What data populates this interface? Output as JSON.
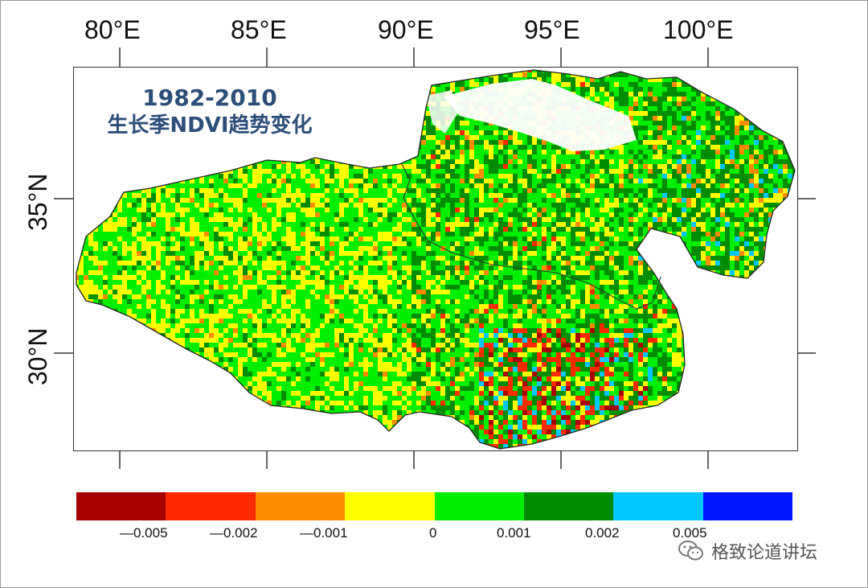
{
  "title": {
    "line1": "1982-2010",
    "line2": "生长季NDVI趋势变化"
  },
  "axes": {
    "lon_ticks": [
      "80°E",
      "85°E",
      "90°E",
      "95°E",
      "100°E"
    ],
    "lat_ticks": [
      "35°N",
      "30°N"
    ]
  },
  "legend": {
    "colors": [
      "#a80000",
      "#ff2a00",
      "#ff8c00",
      "#ffff00",
      "#00ee00",
      "#008c00",
      "#00c8ff",
      "#0014ff"
    ],
    "labels": [
      "—0.005",
      "—0.002",
      "—0.001",
      "0",
      "0.001",
      "0.002",
      "0.005"
    ]
  },
  "map": {
    "region": "Tibetan Plateau",
    "fill_dominant": [
      "#00ee00",
      "#ffff00",
      "#008c00"
    ],
    "hotspot_colors": [
      "#ff2a00",
      "#00c8ff"
    ]
  },
  "watermark": {
    "text": "格致论道讲坛",
    "icon": "wechat-icon"
  }
}
